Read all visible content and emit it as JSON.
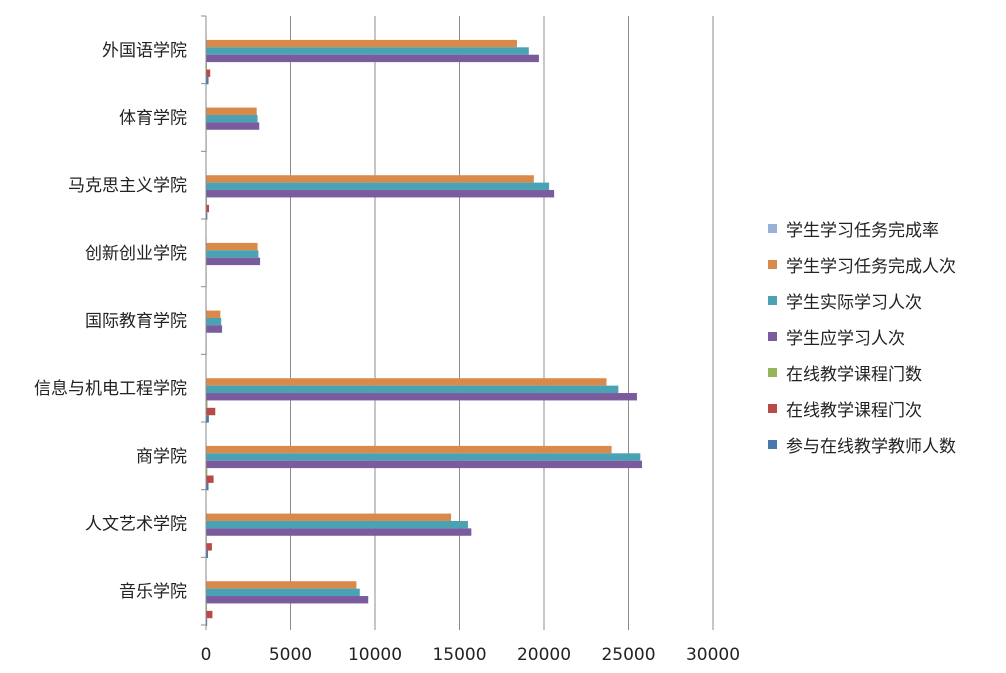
{
  "chart_data": {
    "type": "bar",
    "orientation": "horizontal",
    "categories": [
      "外国语学院",
      "体育学院",
      "马克思主义学院",
      "创新创业学院",
      "国际教育学院",
      "信息与机电工程学院",
      "商学院",
      "人文艺术学院",
      "音乐学院"
    ],
    "series": [
      {
        "name": "学生学习任务完成率",
        "color": "#9bb0d6",
        "values": [
          1,
          1,
          1,
          1,
          1,
          1,
          1,
          1,
          1
        ]
      },
      {
        "name": "学生学习任务完成人次",
        "color": "#d9894a",
        "values": [
          18400,
          3000,
          19400,
          3050,
          850,
          23700,
          24000,
          14500,
          8900
        ]
      },
      {
        "name": "学生实际学习人次",
        "color": "#4aa2b5",
        "values": [
          19100,
          3050,
          20300,
          3100,
          900,
          24400,
          25700,
          15500,
          9100
        ]
      },
      {
        "name": "学生应学习人次",
        "color": "#7a5c9e",
        "values": [
          19700,
          3150,
          20600,
          3200,
          950,
          25500,
          25800,
          15700,
          9600
        ]
      },
      {
        "name": "在线教学课程门数",
        "color": "#96b55a",
        "values": [
          60,
          10,
          60,
          10,
          5,
          90,
          80,
          50,
          60
        ]
      },
      {
        "name": "在线教学课程门次",
        "color": "#b84a47",
        "values": [
          250,
          20,
          180,
          20,
          10,
          550,
          450,
          350,
          380
        ]
      },
      {
        "name": "参与在线教学教师人数",
        "color": "#4a78ad",
        "values": [
          150,
          10,
          80,
          10,
          5,
          170,
          150,
          120,
          70
        ]
      }
    ],
    "xlim": [
      0,
      30000
    ],
    "xticks": [
      "0",
      "5000",
      "10000",
      "15000",
      "20000",
      "25000",
      "30000"
    ],
    "grid": true,
    "legend_position": "right"
  }
}
